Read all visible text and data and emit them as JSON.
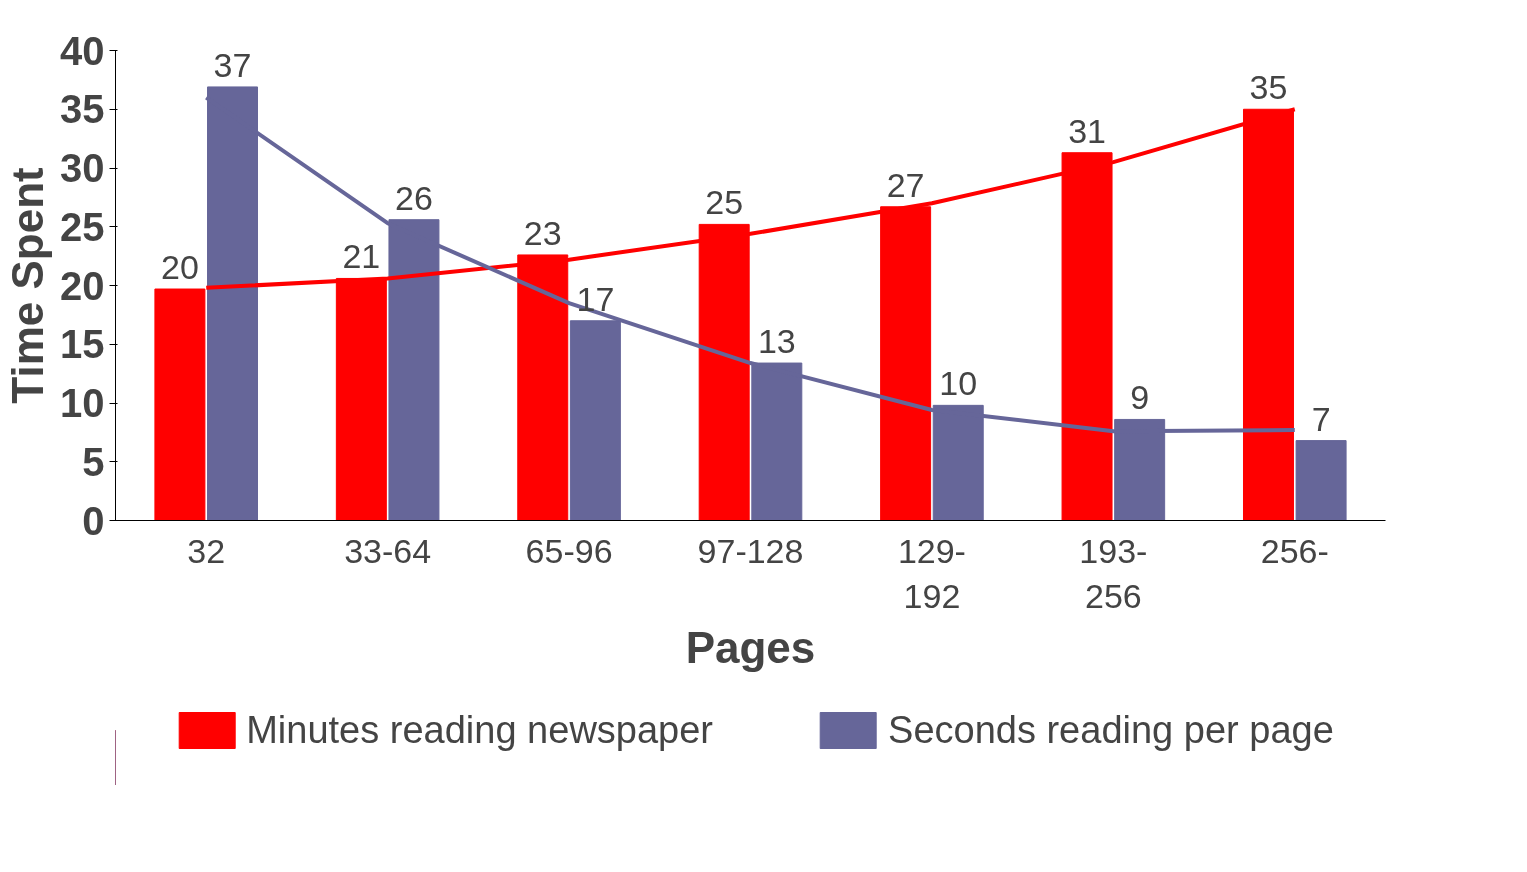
{
  "chart_data": {
    "type": "bar",
    "xlabel": "Pages",
    "ylabel": "Time Spent",
    "categories": [
      "32",
      "33-64",
      "65-96",
      "97-128",
      "129-192",
      "193-256",
      "256-"
    ],
    "series": [
      {
        "name": "Minutes reading newspaper",
        "color": "#ff0000",
        "values": [
          19.7,
          20.6,
          22.6,
          25.2,
          26.7,
          31.3,
          35
        ],
        "value_labels": [
          "20",
          "21",
          "23",
          "25",
          "27",
          "31",
          "35"
        ]
      },
      {
        "name": "Seconds reading per page",
        "color": "#666699",
        "values": [
          36.9,
          25.6,
          17,
          13.4,
          9.8,
          8.6,
          6.8
        ],
        "value_labels": [
          "37",
          "26",
          "17",
          "13",
          "10",
          "9",
          "7"
        ]
      },
      {
        "type": "line",
        "color": "#ff0000",
        "values": [
          19.8,
          20.6,
          22.2,
          24.4,
          27.0,
          30.5,
          35.0
        ]
      },
      {
        "type": "line",
        "color": "#666699",
        "values": [
          36.0,
          25.3,
          18.5,
          13.4,
          9.4,
          7.6,
          7.7
        ]
      }
    ],
    "ylim": [
      0,
      40
    ],
    "yticks": [
      0,
      5,
      10,
      15,
      20,
      25,
      30,
      35,
      40
    ],
    "grid": false,
    "legend": "bottom"
  }
}
